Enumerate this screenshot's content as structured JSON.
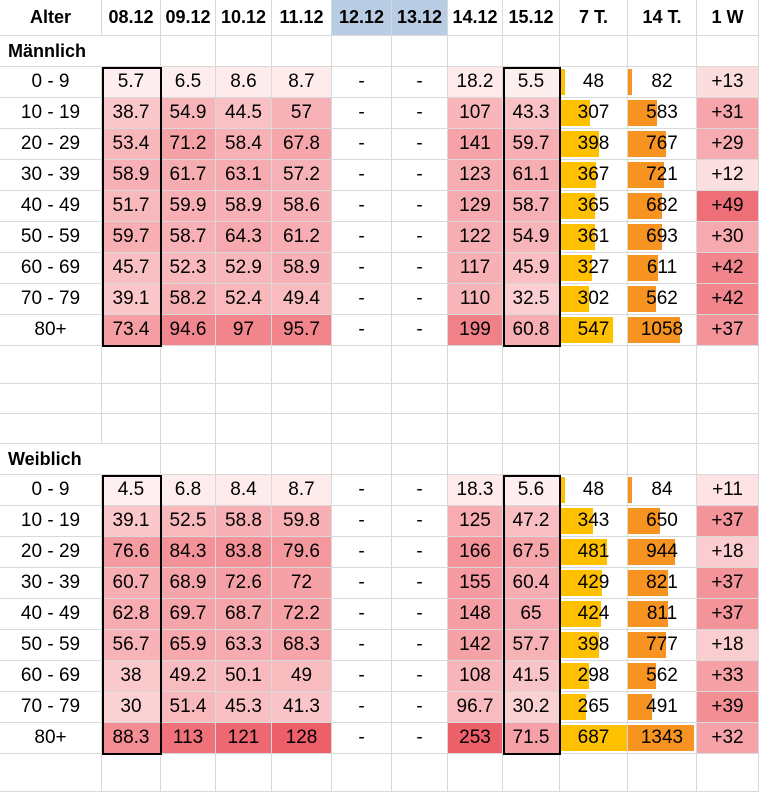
{
  "header": [
    "Alter",
    "08.12",
    "09.12",
    "10.12",
    "11.12",
    "12.12",
    "13.12",
    "14.12",
    "15.12",
    "7 T.",
    "14 T.",
    "1 W"
  ],
  "highlight_header_cols": [
    "12.12",
    "13.12"
  ],
  "colors": {
    "header_highlight": "#b8cce4",
    "bar_yellow": "#ffc000",
    "bar_orange": "#f79320",
    "grid": "#d9d9d9"
  },
  "sections": [
    {
      "title": "Männlich",
      "rows": [
        {
          "age": "0 - 9",
          "d": [
            "5.7",
            "6.5",
            "8.6",
            "8.7",
            "-",
            "-",
            "18.2",
            "5.5"
          ],
          "t7": "48",
          "t14": "82",
          "w": "+13"
        },
        {
          "age": "10 - 19",
          "d": [
            "38.7",
            "54.9",
            "44.5",
            "57",
            "-",
            "-",
            "107",
            "43.3"
          ],
          "t7": "307",
          "t14": "583",
          "w": "+31"
        },
        {
          "age": "20 - 29",
          "d": [
            "53.4",
            "71.2",
            "58.4",
            "67.8",
            "-",
            "-",
            "141",
            "59.7"
          ],
          "t7": "398",
          "t14": "767",
          "w": "+29"
        },
        {
          "age": "30 - 39",
          "d": [
            "58.9",
            "61.7",
            "63.1",
            "57.2",
            "-",
            "-",
            "123",
            "61.1"
          ],
          "t7": "367",
          "t14": "721",
          "w": "+12"
        },
        {
          "age": "40 - 49",
          "d": [
            "51.7",
            "59.9",
            "58.9",
            "58.6",
            "-",
            "-",
            "129",
            "58.7"
          ],
          "t7": "365",
          "t14": "682",
          "w": "+49"
        },
        {
          "age": "50 - 59",
          "d": [
            "59.7",
            "58.7",
            "64.3",
            "61.2",
            "-",
            "-",
            "122",
            "54.9"
          ],
          "t7": "361",
          "t14": "693",
          "w": "+30"
        },
        {
          "age": "60 - 69",
          "d": [
            "45.7",
            "52.3",
            "52.9",
            "58.9",
            "-",
            "-",
            "117",
            "45.9"
          ],
          "t7": "327",
          "t14": "611",
          "w": "+42"
        },
        {
          "age": "70 - 79",
          "d": [
            "39.1",
            "58.2",
            "52.4",
            "49.4",
            "-",
            "-",
            "110",
            "32.5"
          ],
          "t7": "302",
          "t14": "562",
          "w": "+42"
        },
        {
          "age": "80+",
          "d": [
            "73.4",
            "94.6",
            "97",
            "95.7",
            "-",
            "-",
            "199",
            "60.8"
          ],
          "t7": "547",
          "t14": "1058",
          "w": "+37"
        }
      ]
    },
    {
      "title": "Weiblich",
      "rows": [
        {
          "age": "0 - 9",
          "d": [
            "4.5",
            "6.8",
            "8.4",
            "8.7",
            "-",
            "-",
            "18.3",
            "5.6"
          ],
          "t7": "48",
          "t14": "84",
          "w": "+11"
        },
        {
          "age": "10 - 19",
          "d": [
            "39.1",
            "52.5",
            "58.8",
            "59.8",
            "-",
            "-",
            "125",
            "47.2"
          ],
          "t7": "343",
          "t14": "650",
          "w": "+37"
        },
        {
          "age": "20 - 29",
          "d": [
            "76.6",
            "84.3",
            "83.8",
            "79.6",
            "-",
            "-",
            "166",
            "67.5"
          ],
          "t7": "481",
          "t14": "944",
          "w": "+18"
        },
        {
          "age": "30 - 39",
          "d": [
            "60.7",
            "68.9",
            "72.6",
            "72",
            "-",
            "-",
            "155",
            "60.4"
          ],
          "t7": "429",
          "t14": "821",
          "w": "+37"
        },
        {
          "age": "40 - 49",
          "d": [
            "62.8",
            "69.7",
            "68.7",
            "72.2",
            "-",
            "-",
            "148",
            "65"
          ],
          "t7": "424",
          "t14": "811",
          "w": "+37"
        },
        {
          "age": "50 - 59",
          "d": [
            "56.7",
            "65.9",
            "63.3",
            "68.3",
            "-",
            "-",
            "142",
            "57.7"
          ],
          "t7": "398",
          "t14": "777",
          "w": "+18"
        },
        {
          "age": "60 - 69",
          "d": [
            "38",
            "49.2",
            "50.1",
            "49",
            "-",
            "-",
            "108",
            "41.5"
          ],
          "t7": "298",
          "t14": "562",
          "w": "+33"
        },
        {
          "age": "70 - 79",
          "d": [
            "30",
            "51.4",
            "45.3",
            "41.3",
            "-",
            "-",
            "96.7",
            "30.2"
          ],
          "t7": "265",
          "t14": "491",
          "w": "+39"
        },
        {
          "age": "80+",
          "d": [
            "88.3",
            "113",
            "121",
            "128",
            "-",
            "-",
            "253",
            "71.5"
          ],
          "t7": "687",
          "t14": "1343",
          "w": "+32"
        }
      ]
    }
  ]
}
